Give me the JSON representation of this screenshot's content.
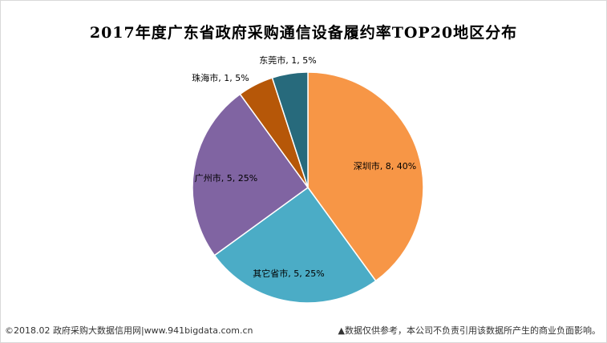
{
  "chart_data": {
    "type": "pie",
    "title": "2017年度广东省政府采购通信设备履约率TOP20地区分布",
    "slices": [
      {
        "name": "深圳市",
        "value": 8,
        "percent": 40,
        "label": "深圳市, 8, 40%",
        "color": "#F79646"
      },
      {
        "name": "其它省市",
        "value": 5,
        "percent": 25,
        "label": "其它省市, 5, 25%",
        "color": "#4BACC6"
      },
      {
        "name": "广州市",
        "value": 5,
        "percent": 25,
        "label": "广州市, 5, 25%",
        "color": "#8064A2"
      },
      {
        "name": "珠海市",
        "value": 1,
        "percent": 5,
        "label": "珠海市, 1, 5%",
        "color": "#B65708"
      },
      {
        "name": "东莞市",
        "value": 1,
        "percent": 5,
        "label": "东莞市, 1, 5%",
        "color": "#276A7C"
      }
    ],
    "start_angle_deg": 0,
    "direction": "clockwise",
    "legend": "none"
  },
  "footer": {
    "left": "©2018.02 政府采购大数据信用网|www.941bigdata.com.cn",
    "right": "▲数据仅供参考，本公司不负责引用该数据所产生的商业负面影响。"
  }
}
